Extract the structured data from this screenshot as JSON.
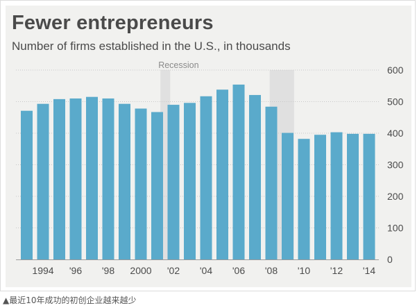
{
  "caption": "▲最近10年成功的初创企业越来越少",
  "chart_data": {
    "type": "bar",
    "title": "Fewer entrepreneurs",
    "subtitle": "Number of firms established in the U.S., in thousands",
    "x": [
      1993,
      1994,
      1995,
      1996,
      1997,
      1998,
      1999,
      2000,
      2001,
      2002,
      2003,
      2004,
      2005,
      2006,
      2007,
      2008,
      2009,
      2010,
      2011,
      2012,
      2013,
      2014
    ],
    "values": [
      471,
      493,
      508,
      510,
      515,
      510,
      493,
      478,
      467,
      490,
      496,
      517,
      538,
      554,
      521,
      484,
      401,
      382,
      395,
      403,
      398,
      398
    ],
    "xtick_labels": [
      {
        "x": 1994,
        "label": "1994"
      },
      {
        "x": 1996,
        "label": "'96"
      },
      {
        "x": 1998,
        "label": "'98"
      },
      {
        "x": 2000,
        "label": "2000"
      },
      {
        "x": 2002,
        "label": "'02"
      },
      {
        "x": 2004,
        "label": "'04"
      },
      {
        "x": 2006,
        "label": "'06"
      },
      {
        "x": 2008,
        "label": "'08"
      },
      {
        "x": 2010,
        "label": "'10"
      },
      {
        "x": 2012,
        "label": "'12"
      },
      {
        "x": 2014,
        "label": "'14"
      }
    ],
    "yticks": [
      0,
      100,
      200,
      300,
      400,
      500,
      600
    ],
    "ylim": [
      0,
      600
    ],
    "y_axis_position": "right",
    "grid": true,
    "annotations": [
      {
        "label": "Recession",
        "x_start": 2001.2,
        "x_end": 2001.8
      },
      {
        "label": "",
        "x_start": 2007.9,
        "x_end": 2009.4
      }
    ],
    "colors": {
      "bar": "#5aaacb",
      "shade": "#e0e0e0",
      "panel": "#f1f1ef",
      "grid": "#c8c8c8"
    }
  }
}
